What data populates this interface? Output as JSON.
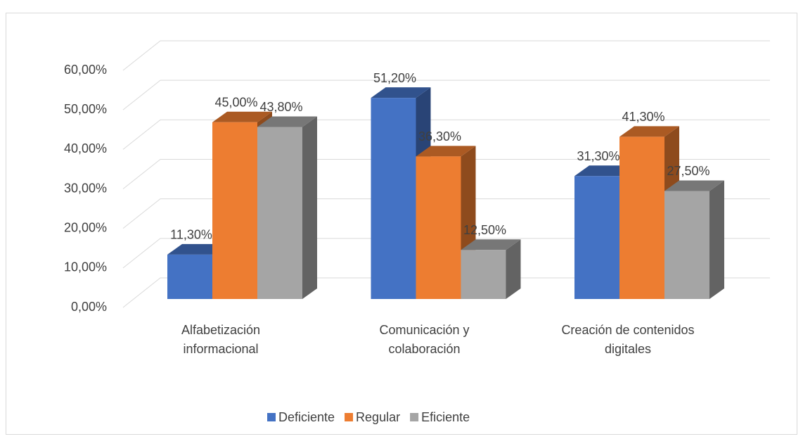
{
  "chart_data": {
    "type": "bar3d",
    "categories": [
      "Alfabetización informacional",
      "Comunicación y colaboración",
      "Creación de contenidos digitales"
    ],
    "series": [
      {
        "name": "Deficiente",
        "color": "#4472c4",
        "values": [
          11.3,
          51.2,
          31.3
        ],
        "value_labels": [
          "11,30%",
          "51,20%",
          "31,30%"
        ]
      },
      {
        "name": "Regular",
        "color": "#ed7d31",
        "values": [
          45,
          36.3,
          41.3
        ],
        "value_labels": [
          "45,00%",
          "36,30%",
          "41,30%"
        ]
      },
      {
        "name": "Eficiente",
        "color": "#a5a5a5",
        "values": [
          43.8,
          12.5,
          27.5
        ],
        "value_labels": [
          "43,80%",
          "12,50%",
          "27,50%"
        ]
      }
    ],
    "ylim": [
      0,
      60
    ],
    "yticks": [
      {
        "value": 0,
        "label": "0,00%"
      },
      {
        "value": 10,
        "label": "10,00%"
      },
      {
        "value": 20,
        "label": "20,00%"
      },
      {
        "value": 30,
        "label": "30,00%"
      },
      {
        "value": 40,
        "label": "40,00%"
      },
      {
        "value": 50,
        "label": "50,00%"
      },
      {
        "value": 60,
        "label": "60,00%"
      }
    ],
    "grid": true,
    "legend": "bottom"
  }
}
